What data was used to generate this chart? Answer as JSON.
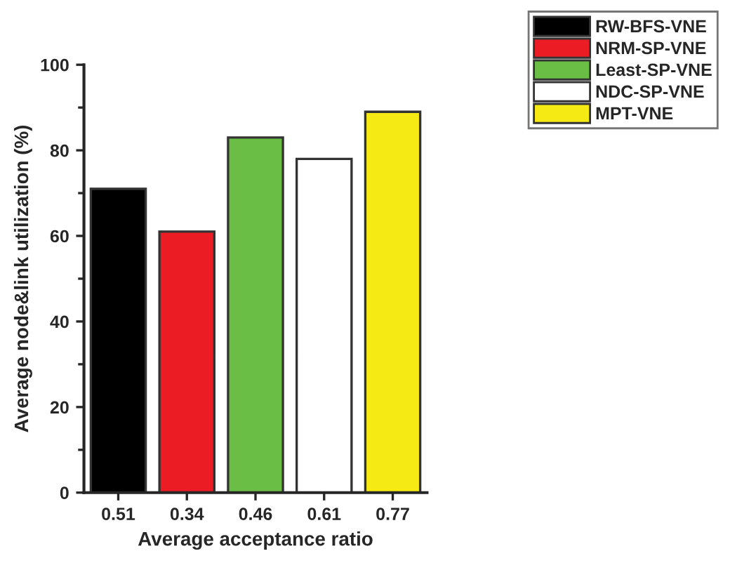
{
  "chart_data": {
    "type": "bar",
    "xlabel": "Average acceptance ratio",
    "ylabel": "Average node&link utilization (%)",
    "categories": [
      "0.51",
      "0.34",
      "0.46",
      "0.61",
      "0.77"
    ],
    "series": [
      {
        "name": "RW-BFS-VNE",
        "color": "#000000",
        "values": [
          71,
          null,
          null,
          null,
          null
        ]
      },
      {
        "name": "NRM-SP-VNE",
        "color": "#ec1c24",
        "values": [
          null,
          61,
          null,
          null,
          null
        ]
      },
      {
        "name": "Least-SP-VNE",
        "color": "#6abd45",
        "values": [
          null,
          null,
          83,
          null,
          null
        ]
      },
      {
        "name": "NDC-SP-VNE",
        "color": "#ffffff",
        "values": [
          null,
          null,
          null,
          78,
          null
        ]
      },
      {
        "name": "MPT-VNE",
        "color": "#f5ea14",
        "values": [
          null,
          null,
          null,
          null,
          89
        ]
      }
    ],
    "ylim": [
      0,
      100
    ],
    "yticks": [
      0,
      20,
      40,
      60,
      80,
      100
    ],
    "legend": "top right",
    "grid": false
  }
}
